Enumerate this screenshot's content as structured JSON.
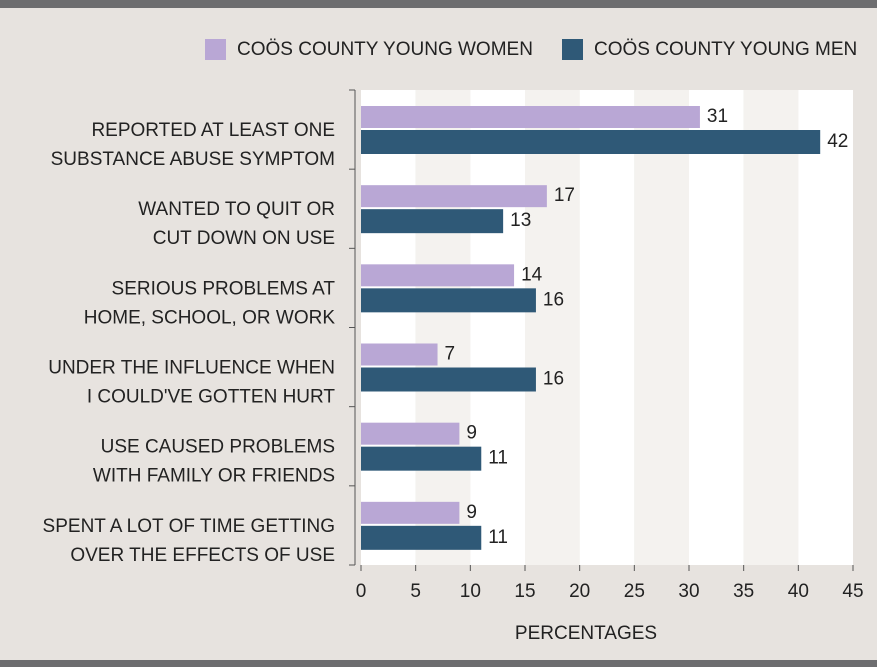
{
  "chart_data": {
    "type": "hbar",
    "categories": [
      [
        "REPORTED AT LEAST ONE",
        "SUBSTANCE ABUSE SYMPTOM"
      ],
      [
        "WANTED TO QUIT OR",
        "CUT DOWN ON USE"
      ],
      [
        "SERIOUS PROBLEMS AT",
        "HOME, SCHOOL, OR WORK"
      ],
      [
        "UNDER THE INFLUENCE WHEN",
        "I COULD'VE GOTTEN HURT"
      ],
      [
        "USE CAUSED PROBLEMS",
        "WITH FAMILY OR FRIENDS"
      ],
      [
        "SPENT A LOT OF TIME GETTING",
        "OVER THE EFFECTS OF USE"
      ]
    ],
    "series": [
      {
        "name": "COÖS COUNTY YOUNG WOMEN",
        "color": "#b9a7d5",
        "values": [
          31,
          17,
          14,
          7,
          9,
          9
        ]
      },
      {
        "name": "COÖS COUNTY YOUNG MEN",
        "color": "#2f5977",
        "values": [
          42,
          13,
          16,
          16,
          11,
          11
        ]
      }
    ],
    "x_label": "PERCENTAGES",
    "xlim": [
      0,
      45
    ],
    "xticks": [
      0,
      5,
      10,
      15,
      20,
      25,
      30,
      35,
      40,
      45
    ],
    "grid": true,
    "legend": "top"
  }
}
